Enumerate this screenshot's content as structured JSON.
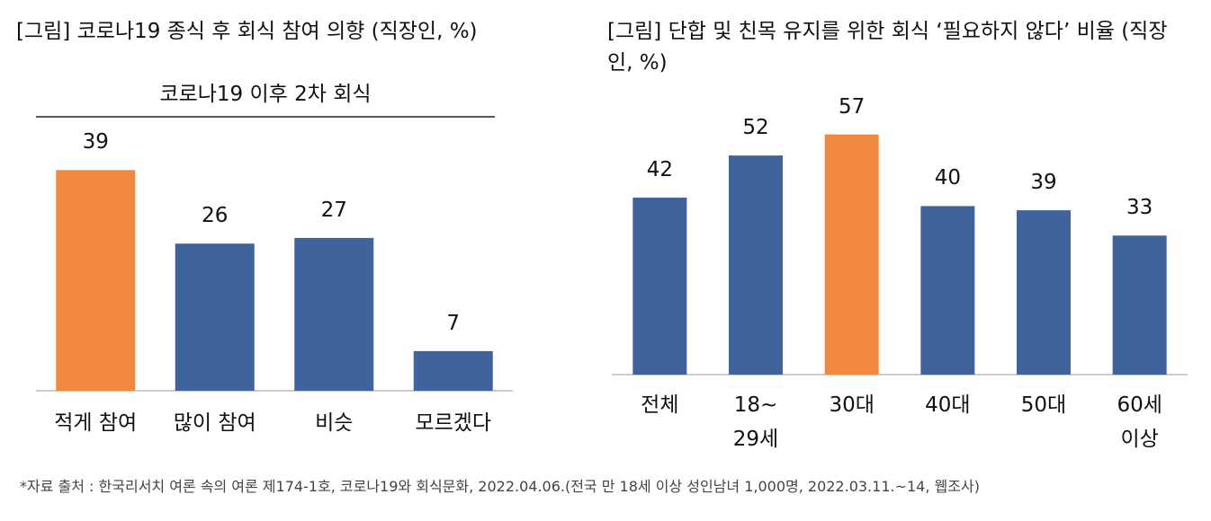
{
  "chart_data": [
    {
      "type": "bar",
      "title": "[그림] 코로나19 종식 후 회식 참여 의향 (직장인, %)",
      "subtitle": "코로나19 이후 2차 회식",
      "categories": [
        "적게 참여",
        "많이 참여",
        "비슷",
        "모르겠다"
      ],
      "values": [
        39,
        26,
        27,
        7
      ],
      "colors": [
        "#f0883f",
        "#41639b",
        "#41639b",
        "#41639b"
      ]
    },
    {
      "type": "bar",
      "title": "[그림] 단합 및 친목 유지를 위한 회식 ‘필요하지 않다’ 비율 (직장인, %)",
      "categories": [
        "전체",
        "18~\n29세",
        "30대",
        "40대",
        "50대",
        "60세\n이상"
      ],
      "values": [
        42,
        52,
        57,
        40,
        39,
        33
      ],
      "colors": [
        "#41639b",
        "#41639b",
        "#f0883f",
        "#41639b",
        "#41639b",
        "#41639b"
      ]
    }
  ],
  "source": "*자료 출처 : 한국리서치 여론 속의 여론 제174-1호, 코로나19와 회식문화, 2022.04.06.(전국 만 18세 이상 성인남녀 1,000명, 2022.03.11.~14, 웹조사)"
}
